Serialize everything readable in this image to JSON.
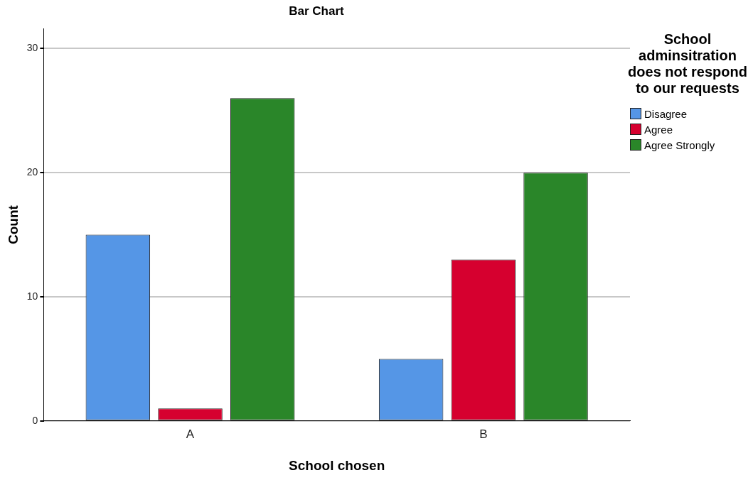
{
  "chart_data": {
    "type": "bar",
    "title": "Bar Chart",
    "xlabel": "School chosen",
    "ylabel": "Count",
    "legend_title": "School adminsitration does not respond to our requests",
    "categories": [
      "A",
      "B"
    ],
    "series": [
      {
        "name": "Disagree",
        "color": "#5596e6",
        "values": [
          15,
          5
        ]
      },
      {
        "name": "Agree",
        "color": "#d6002f",
        "values": [
          1,
          13
        ]
      },
      {
        "name": "Agree Strongly",
        "color": "#2a8629",
        "values": [
          26,
          20
        ]
      }
    ],
    "ylim": [
      0,
      31.6
    ],
    "yticks": [
      0,
      10,
      20,
      30
    ],
    "grid": "y",
    "legend": "right"
  }
}
